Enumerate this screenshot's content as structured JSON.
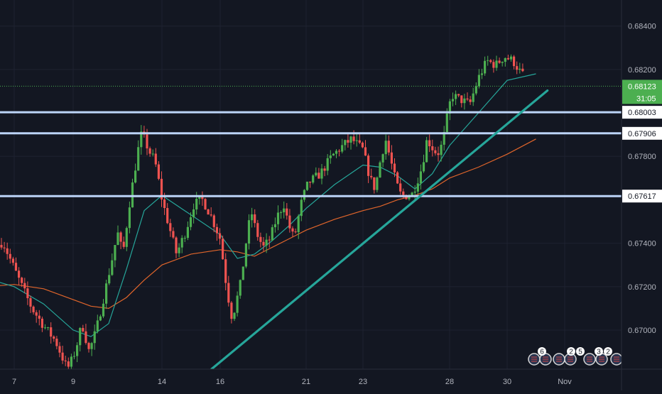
{
  "colors": {
    "background": "#131722",
    "grid": "#1e2230",
    "axis_text": "#b2b5be",
    "candle_up": "#26a69a",
    "candle_up_body": "#4caf50",
    "candle_down": "#ef5350",
    "ma_fast": "#26a69a",
    "ma_slow": "#e0652b",
    "trendline": "#26a69a",
    "level_line": "#bcd4f7",
    "price_line": "#4caf50",
    "badge_text": "#131722",
    "price_badge": "#4caf50"
  },
  "chart_data": {
    "type": "candlestick",
    "ylim": [
      0.6682,
      0.6852
    ],
    "x_ticks": [
      "7",
      "9",
      "14",
      "16",
      "21",
      "23",
      "28",
      "30",
      "Nov"
    ],
    "y_ticks": [
      "0.68400",
      "0.68200",
      "0.67800",
      "0.67400",
      "0.67200",
      "0.67000"
    ],
    "current_price": {
      "label": "0.68123",
      "value": 0.68123,
      "countdown": "31:05"
    },
    "levels": [
      {
        "label": "0.68003",
        "value": 0.68003
      },
      {
        "label": "0.67906",
        "value": 0.67906
      },
      {
        "label": "0.67617",
        "value": 0.67617
      }
    ],
    "trendline": {
      "from_day": 15.7,
      "from_price": 0.6682,
      "to_day": 31.4,
      "to_price": 0.68103
    },
    "price_path": [
      [
        6.0,
        0.6728
      ],
      [
        6.6,
        0.6741
      ],
      [
        7.2,
        0.6722
      ],
      [
        7.6,
        0.671
      ],
      [
        8.0,
        0.6702
      ],
      [
        8.4,
        0.6695
      ],
      [
        8.8,
        0.6682
      ],
      [
        9.2,
        0.6693
      ],
      [
        9.5,
        0.6703
      ],
      [
        9.9,
        0.669
      ],
      [
        10.3,
        0.67
      ],
      [
        10.8,
        0.6718
      ],
      [
        11.2,
        0.6733
      ],
      [
        11.5,
        0.6745
      ],
      [
        11.8,
        0.6735
      ],
      [
        12.2,
        0.676
      ],
      [
        12.5,
        0.6775
      ],
      [
        12.8,
        0.679
      ],
      [
        13.0,
        0.6788
      ],
      [
        13.3,
        0.6782
      ],
      [
        13.6,
        0.6778
      ],
      [
        13.9,
        0.6765
      ],
      [
        14.2,
        0.675
      ],
      [
        14.5,
        0.6735
      ],
      [
        14.8,
        0.6745
      ],
      [
        15.1,
        0.6758
      ],
      [
        15.4,
        0.676
      ],
      [
        15.7,
        0.6752
      ],
      [
        16.0,
        0.6742
      ],
      [
        16.2,
        0.673
      ],
      [
        16.4,
        0.6718
      ],
      [
        16.7,
        0.6705
      ],
      [
        16.9,
        0.6712
      ],
      [
        17.2,
        0.6722
      ],
      [
        17.5,
        0.674
      ],
      [
        17.8,
        0.6755
      ],
      [
        18.1,
        0.6745
      ],
      [
        18.5,
        0.6738
      ],
      [
        18.9,
        0.6742
      ],
      [
        19.3,
        0.6752
      ],
      [
        19.7,
        0.6758
      ],
      [
        20.0,
        0.6748
      ],
      [
        20.3,
        0.6742
      ],
      [
        20.7,
        0.6758
      ],
      [
        21.1,
        0.6768
      ],
      [
        21.5,
        0.6772
      ],
      [
        21.9,
        0.678
      ],
      [
        22.3,
        0.6785
      ],
      [
        22.6,
        0.6788
      ],
      [
        23.0,
        0.6783
      ],
      [
        23.4,
        0.677
      ],
      [
        23.7,
        0.6765
      ],
      [
        24.0,
        0.6778
      ],
      [
        24.3,
        0.6788
      ],
      [
        24.6,
        0.6778
      ],
      [
        24.9,
        0.6768
      ],
      [
        25.2,
        0.6762
      ],
      [
        25.5,
        0.6762
      ],
      [
        25.8,
        0.6762
      ],
      [
        26.1,
        0.6768
      ],
      [
        26.4,
        0.6775
      ],
      [
        26.7,
        0.6788
      ],
      [
        27.0,
        0.6784
      ],
      [
        27.3,
        0.6781
      ],
      [
        27.6,
        0.6786
      ],
      [
        27.9,
        0.68
      ],
      [
        28.1,
        0.6808
      ],
      [
        28.4,
        0.6806
      ],
      [
        28.7,
        0.6804
      ],
      [
        29.0,
        0.6816
      ],
      [
        29.3,
        0.6824
      ],
      [
        29.6,
        0.6822
      ],
      [
        29.9,
        0.6826
      ],
      [
        30.2,
        0.6824
      ],
      [
        30.5,
        0.6818
      ],
      [
        30.8,
        0.6815
      ],
      [
        31.0,
        0.6812
      ]
    ],
    "ma_fast": [
      [
        6.0,
        0.6724
      ],
      [
        7.0,
        0.672
      ],
      [
        8.0,
        0.6712
      ],
      [
        9.0,
        0.67
      ],
      [
        10.0,
        0.6697
      ],
      [
        11.0,
        0.6703
      ],
      [
        12.0,
        0.6728
      ],
      [
        13.0,
        0.6755
      ],
      [
        14.0,
        0.6762
      ],
      [
        15.0,
        0.6753
      ],
      [
        16.0,
        0.6744
      ],
      [
        17.0,
        0.6733
      ],
      [
        18.0,
        0.6735
      ],
      [
        19.0,
        0.6741
      ],
      [
        20.0,
        0.6748
      ],
      [
        21.0,
        0.6756
      ],
      [
        22.0,
        0.6767
      ],
      [
        23.0,
        0.6776
      ],
      [
        24.0,
        0.6775
      ],
      [
        25.0,
        0.6771
      ],
      [
        26.0,
        0.6765
      ],
      [
        27.0,
        0.6772
      ],
      [
        28.0,
        0.6785
      ],
      [
        29.0,
        0.68
      ],
      [
        30.0,
        0.6815
      ],
      [
        31.0,
        0.6818
      ]
    ],
    "ma_slow": [
      [
        6.0,
        0.672
      ],
      [
        7.0,
        0.6721
      ],
      [
        8.0,
        0.6719
      ],
      [
        9.0,
        0.6714
      ],
      [
        10.0,
        0.6711
      ],
      [
        11.0,
        0.671
      ],
      [
        12.0,
        0.6715
      ],
      [
        13.0,
        0.6723
      ],
      [
        14.0,
        0.673
      ],
      [
        15.0,
        0.6735
      ],
      [
        16.0,
        0.6737
      ],
      [
        17.0,
        0.6736
      ],
      [
        18.0,
        0.6734
      ],
      [
        19.0,
        0.6738
      ],
      [
        20.0,
        0.6742
      ],
      [
        21.0,
        0.6746
      ],
      [
        22.0,
        0.6751
      ],
      [
        23.0,
        0.6755
      ],
      [
        24.0,
        0.6757
      ],
      [
        25.0,
        0.676
      ],
      [
        26.0,
        0.6762
      ],
      [
        27.0,
        0.6765
      ],
      [
        28.0,
        0.677
      ],
      [
        29.0,
        0.6775
      ],
      [
        30.0,
        0.6781
      ],
      [
        31.0,
        0.6788
      ]
    ]
  },
  "events": [
    {
      "name": "event-flags-1",
      "count": "6"
    },
    {
      "name": "event-flags-2",
      "count": "2"
    },
    {
      "name": "event-flags-3",
      "count": "5"
    },
    {
      "name": "event-flags-4",
      "count": "3"
    },
    {
      "name": "event-flags-5",
      "count": "2"
    }
  ]
}
